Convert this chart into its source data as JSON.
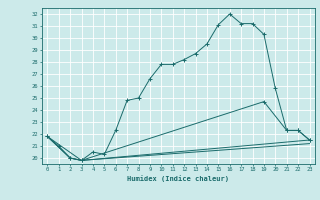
{
  "xlabel": "Humidex (Indice chaleur)",
  "bg_color": "#cceaea",
  "line_color": "#1a6b6b",
  "grid_color": "#ffffff",
  "xlim": [
    -0.5,
    23.5
  ],
  "ylim": [
    19.5,
    32.5
  ],
  "yticks": [
    20,
    21,
    22,
    23,
    24,
    25,
    26,
    27,
    28,
    29,
    30,
    31,
    32
  ],
  "xticks": [
    0,
    1,
    2,
    3,
    4,
    5,
    6,
    7,
    8,
    9,
    10,
    11,
    12,
    13,
    14,
    15,
    16,
    17,
    18,
    19,
    20,
    21,
    22,
    23
  ],
  "line1": [
    [
      0,
      21.8
    ],
    [
      1,
      21.0
    ],
    [
      2,
      20.0
    ],
    [
      3,
      19.8
    ],
    [
      4,
      20.5
    ],
    [
      5,
      20.3
    ],
    [
      6,
      22.3
    ],
    [
      7,
      24.8
    ],
    [
      8,
      25.0
    ],
    [
      9,
      26.6
    ],
    [
      10,
      27.8
    ],
    [
      11,
      27.8
    ],
    [
      12,
      28.2
    ],
    [
      13,
      28.7
    ],
    [
      14,
      29.5
    ],
    [
      15,
      31.1
    ],
    [
      16,
      32.0
    ],
    [
      17,
      31.2
    ],
    [
      18,
      31.2
    ],
    [
      19,
      30.3
    ],
    [
      20,
      25.8
    ],
    [
      21,
      22.3
    ],
    [
      22,
      22.3
    ],
    [
      23,
      21.5
    ]
  ],
  "line2": [
    [
      0,
      21.8
    ],
    [
      2,
      20.0
    ],
    [
      3,
      19.8
    ],
    [
      23,
      21.5
    ]
  ],
  "line3": [
    [
      0,
      21.8
    ],
    [
      2,
      20.0
    ],
    [
      3,
      19.8
    ],
    [
      19,
      24.7
    ],
    [
      21,
      22.3
    ],
    [
      22,
      22.3
    ],
    [
      23,
      21.5
    ]
  ],
  "line4": [
    [
      0,
      21.8
    ],
    [
      3,
      19.8
    ],
    [
      23,
      21.2
    ]
  ]
}
